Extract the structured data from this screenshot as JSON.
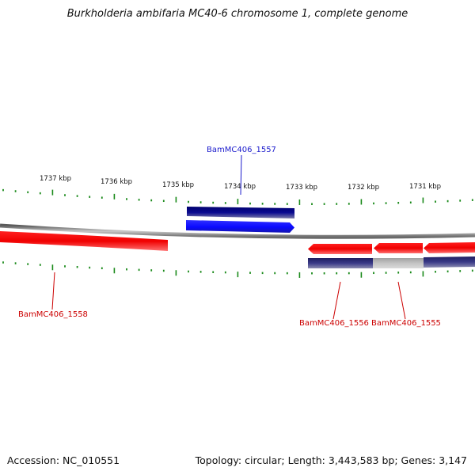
{
  "title": "Burkholderia ambifaria MC40-6 chromosome 1, complete genome",
  "accession_text": "Accession: NC_010551",
  "summary_text": "Topology: circular; Length: 3,443,583 bp; Genes: 3,147",
  "colors": {
    "forward_gene": "#1a1aff",
    "forward_cds_band": "#000080",
    "reverse_gene": "#ee0000",
    "reverse_cds_band": "#2d2d7a",
    "backbone": "#888888",
    "tick": "#1a8a1a"
  },
  "ticks": [
    {
      "label": "1737 kbp"
    },
    {
      "label": "1736 kbp"
    },
    {
      "label": "1735 kbp"
    },
    {
      "label": "1734 kbp"
    },
    {
      "label": "1733 kbp"
    },
    {
      "label": "1732 kbp"
    },
    {
      "label": "1731 kbp"
    }
  ],
  "genes": [
    {
      "id": "BamMC406_1557",
      "strand": "forward"
    },
    {
      "id": "BamMC406_1558",
      "strand": "reverse"
    },
    {
      "id": "BamMC406_1556",
      "strand": "reverse"
    },
    {
      "id": "BamMC406_1555",
      "strand": "reverse"
    }
  ]
}
